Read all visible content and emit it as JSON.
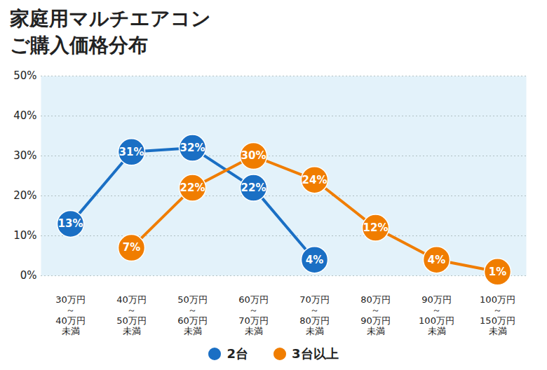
{
  "chart_data": {
    "type": "line",
    "title": "家庭用マルチエアコン",
    "subtitle": "ご購入価格分布",
    "categories": [
      "30万円\n～\n40万円\n未満",
      "40万円\n～\n50万円\n未満",
      "50万円\n～\n60万円\n未満",
      "60万円\n～\n70万円\n未満",
      "70万円\n～\n80万円\n未満",
      "80万円\n～\n90万円\n未満",
      "90万円\n～\n100万円\n未満",
      "100万円\n～\n150万円\n未満"
    ],
    "series": [
      {
        "name": "2台",
        "color": "#1a6fc4",
        "values": [
          13,
          31,
          32,
          22,
          4,
          null,
          null,
          null
        ],
        "value_labels": [
          "13%",
          "31%",
          "32%",
          "22%",
          "4%",
          null,
          null,
          null
        ]
      },
      {
        "name": "3台以上",
        "color": "#f07d00",
        "values": [
          null,
          7,
          22,
          30,
          24,
          12,
          4,
          1
        ],
        "value_labels": [
          null,
          "7%",
          "22%",
          "30%",
          "24%",
          "12%",
          "4%",
          "1%"
        ]
      }
    ],
    "ylim": [
      0,
      50
    ],
    "yticks": [
      {
        "value": 0,
        "label": "0%"
      },
      {
        "value": 10,
        "label": "10%"
      },
      {
        "value": 20,
        "label": "20%"
      },
      {
        "value": 30,
        "label": "30%"
      },
      {
        "value": 40,
        "label": "40%"
      },
      {
        "value": 50,
        "label": "50%"
      }
    ],
    "grid": true,
    "data_labels": true,
    "legend": "bottom",
    "marker": "circle"
  }
}
